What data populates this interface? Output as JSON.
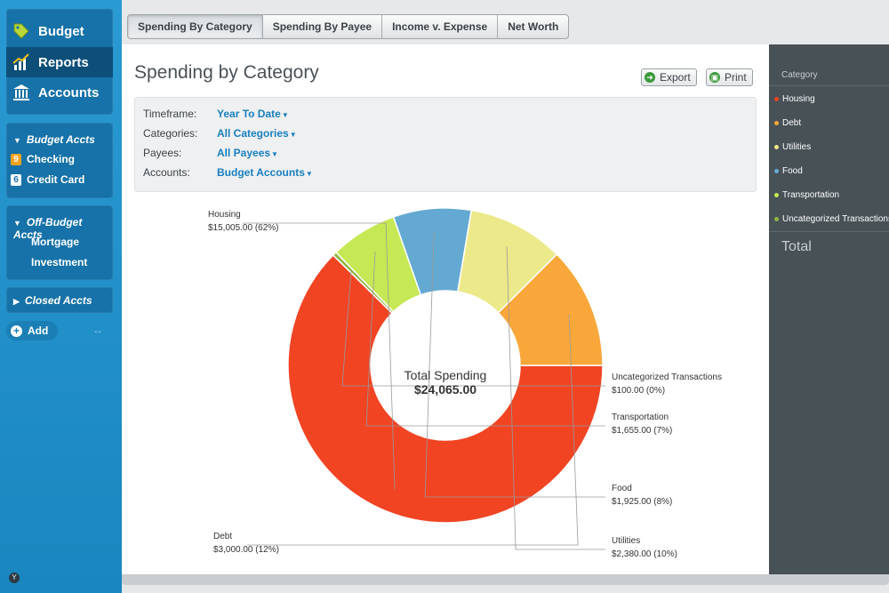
{
  "sidebar": {
    "nav": [
      {
        "label": "Budget",
        "icon": "tag-icon"
      },
      {
        "label": "Reports",
        "icon": "chart-icon"
      },
      {
        "label": "Accounts",
        "icon": "bank-icon"
      }
    ],
    "budget_group": {
      "title": "Budget Accts",
      "accounts": [
        {
          "badge": "9",
          "badge_color": "#f2a31c",
          "name": "Checking"
        },
        {
          "badge": "6",
          "badge_color": "#2a95d4",
          "name": "Credit Card"
        }
      ]
    },
    "offbudget_group": {
      "title": "Off-Budget Accts",
      "accounts": [
        {
          "name": "Mortgage"
        },
        {
          "name": "Investment"
        }
      ]
    },
    "closed_group": {
      "title": "Closed Accts"
    },
    "add_label": "Add",
    "collapse_glyph": "↔",
    "logo_letter": "Y"
  },
  "tabs": [
    "Spending By Category",
    "Spending By Payee",
    "Income v. Expense",
    "Net Worth"
  ],
  "active_tab": 0,
  "page": {
    "title": "Spending by Category",
    "export_label": "Export",
    "print_label": "Print"
  },
  "filters": [
    {
      "label": "Timeframe:",
      "value": "Year To Date"
    },
    {
      "label": "Categories:",
      "value": "All Categories"
    },
    {
      "label": "Payees:",
      "value": "All Payees"
    },
    {
      "label": "Accounts:",
      "value": "Budget Accounts"
    }
  ],
  "chart_data": {
    "type": "pie",
    "center_label": "Total Spending",
    "center_value": "$24,065.00",
    "slices": [
      {
        "name": "Housing",
        "value": 15005.0,
        "amount": "$15,005.00 (62%)",
        "color": "#f04423"
      },
      {
        "name": "Uncategorized Transactions",
        "value": 100.0,
        "amount": "$100.00 (0%)",
        "color": "#8fb545"
      },
      {
        "name": "Transportation",
        "value": 1655.0,
        "amount": "$1,655.00 (7%)",
        "color": "#c5e854"
      },
      {
        "name": "Food",
        "value": 1925.0,
        "amount": "$1,925.00 (8%)",
        "color": "#64a9d1"
      },
      {
        "name": "Utilities",
        "value": 2380.0,
        "amount": "$2,380.00 (10%)",
        "color": "#ece98b"
      },
      {
        "name": "Debt",
        "value": 3000.0,
        "amount": "$3,000.00 (12%)",
        "color": "#f9a73a"
      }
    ]
  },
  "legend": {
    "header": "Category",
    "items": [
      {
        "name": "Housing",
        "color": "#f04423"
      },
      {
        "name": "Debt",
        "color": "#f9a73a"
      },
      {
        "name": "Utilities",
        "color": "#ece98b"
      },
      {
        "name": "Food",
        "color": "#64a9d1"
      },
      {
        "name": "Transportation",
        "color": "#c5e854"
      },
      {
        "name": "Uncategorized Transactions",
        "color": "#8fb545"
      }
    ],
    "total_label": "Total"
  }
}
